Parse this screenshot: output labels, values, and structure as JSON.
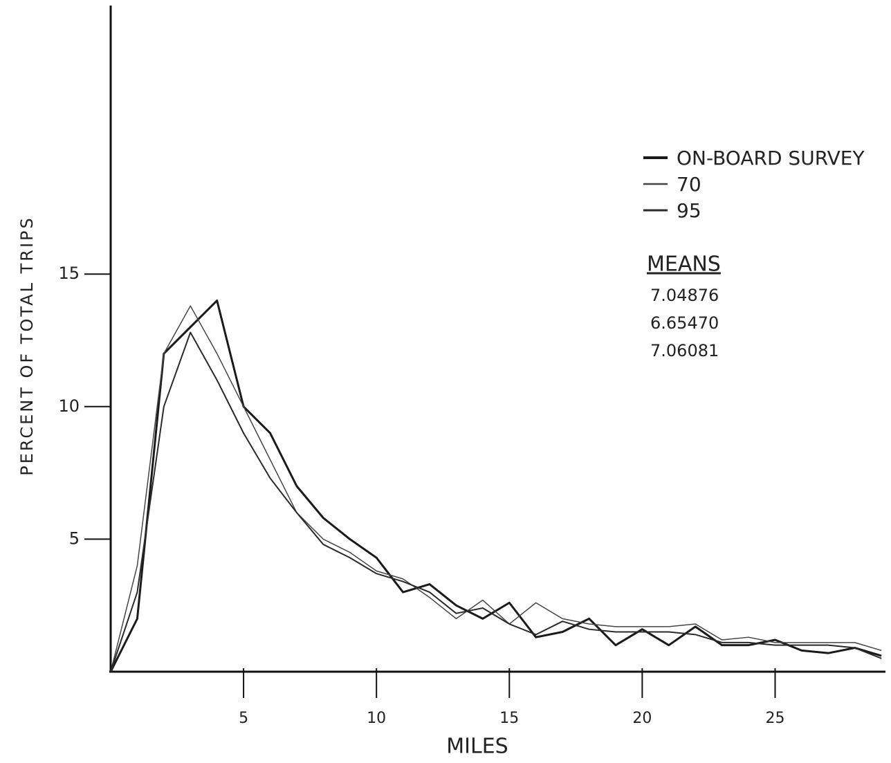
{
  "chart_data": {
    "type": "line",
    "x_label": "MILES",
    "y_label": "PERCENT OF TOTAL TRIPS",
    "x": [
      0,
      1,
      2,
      3,
      4,
      5,
      6,
      7,
      8,
      9,
      10,
      11,
      12,
      13,
      14,
      15,
      16,
      17,
      18,
      19,
      20,
      21,
      22,
      23,
      24,
      25,
      26,
      27,
      28,
      29
    ],
    "series": [
      {
        "name": "ON-BOARD SURVEY",
        "color": "#1a1a1a",
        "width": 3,
        "values": [
          0,
          2,
          12,
          13,
          14,
          10,
          9,
          7,
          5.8,
          5,
          4.3,
          3,
          3.3,
          2.5,
          2.0,
          2.6,
          1.3,
          1.5,
          2.0,
          1.0,
          1.6,
          1.0,
          1.7,
          1.0,
          1.0,
          1.2,
          0.8,
          0.7,
          0.9,
          0.6
        ]
      },
      {
        "name": "70",
        "color": "#444444",
        "width": 1.5,
        "values": [
          0,
          4,
          12,
          13.8,
          12,
          10,
          8,
          6,
          5,
          4.5,
          3.8,
          3.5,
          2.8,
          2.0,
          2.7,
          1.8,
          2.6,
          2.0,
          1.8,
          1.7,
          1.7,
          1.7,
          1.8,
          1.2,
          1.3,
          1.1,
          1.1,
          1.1,
          1.1,
          0.8
        ]
      },
      {
        "name": "95",
        "color": "#2a2a2a",
        "width": 2,
        "values": [
          0,
          3,
          10,
          12.8,
          11,
          9,
          7.3,
          6,
          4.8,
          4.3,
          3.7,
          3.4,
          3.0,
          2.2,
          2.4,
          1.8,
          1.4,
          1.9,
          1.6,
          1.5,
          1.5,
          1.5,
          1.4,
          1.1,
          1.1,
          1.0,
          1.0,
          1.0,
          0.9,
          0.5
        ]
      }
    ],
    "means_title": "MEANS",
    "means": [
      "7.04876",
      "6.65470",
      "7.06081"
    ],
    "xlim": [
      0,
      29.1
    ],
    "ylim": [
      0,
      25
    ],
    "xticks": [
      5,
      10,
      15,
      20,
      25
    ],
    "yticks": [
      5,
      10,
      15
    ],
    "grid": false
  }
}
